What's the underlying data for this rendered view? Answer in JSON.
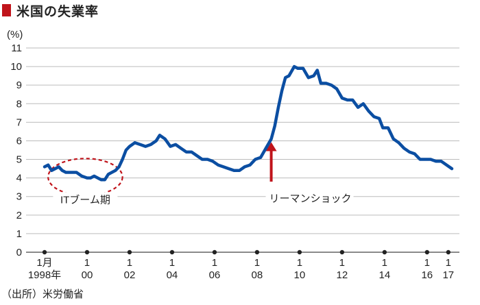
{
  "header": {
    "title": "米国の失業率"
  },
  "source": "（出所）米労働省",
  "chart_data": {
    "type": "line",
    "title": "米国の失業率",
    "ylabel": "(%)",
    "ylim": [
      0,
      11
    ],
    "yticks": [
      0,
      1,
      2,
      3,
      4,
      5,
      6,
      7,
      8,
      9,
      10,
      11
    ],
    "grid": true,
    "x_ticks": [
      {
        "date": "1998-01",
        "top": "1月",
        "bottom": "1998年"
      },
      {
        "date": "2000-01",
        "top": "1",
        "bottom": "00"
      },
      {
        "date": "2002-01",
        "top": "1",
        "bottom": "02"
      },
      {
        "date": "2004-01",
        "top": "1",
        "bottom": "04"
      },
      {
        "date": "2006-01",
        "top": "1",
        "bottom": "06"
      },
      {
        "date": "2008-01",
        "top": "1",
        "bottom": "08"
      },
      {
        "date": "2010-01",
        "top": "1",
        "bottom": "10"
      },
      {
        "date": "2012-01",
        "top": "1",
        "bottom": "12"
      },
      {
        "date": "2014-01",
        "top": "1",
        "bottom": "14"
      },
      {
        "date": "2016-01",
        "top": "1",
        "bottom": "16"
      },
      {
        "date": "2017-01",
        "top": "1",
        "bottom": "17"
      }
    ],
    "series": [
      {
        "color": "#0b4ea2",
        "points": [
          [
            "1998-01",
            4.6
          ],
          [
            "1998-03",
            4.7
          ],
          [
            "1998-05",
            4.4
          ],
          [
            "1998-07",
            4.5
          ],
          [
            "1998-09",
            4.6
          ],
          [
            "1998-11",
            4.4
          ],
          [
            "1999-01",
            4.3
          ],
          [
            "1999-04",
            4.3
          ],
          [
            "1999-07",
            4.3
          ],
          [
            "1999-10",
            4.1
          ],
          [
            "2000-01",
            4.0
          ],
          [
            "2000-03",
            4.0
          ],
          [
            "2000-05",
            4.1
          ],
          [
            "2000-07",
            4.0
          ],
          [
            "2000-09",
            3.9
          ],
          [
            "2000-11",
            3.9
          ],
          [
            "2001-01",
            4.2
          ],
          [
            "2001-03",
            4.3
          ],
          [
            "2001-05",
            4.4
          ],
          [
            "2001-07",
            4.6
          ],
          [
            "2001-09",
            5.0
          ],
          [
            "2001-11",
            5.5
          ],
          [
            "2002-01",
            5.7
          ],
          [
            "2002-04",
            5.9
          ],
          [
            "2002-07",
            5.8
          ],
          [
            "2002-10",
            5.7
          ],
          [
            "2003-01",
            5.8
          ],
          [
            "2003-04",
            6.0
          ],
          [
            "2003-06",
            6.3
          ],
          [
            "2003-09",
            6.1
          ],
          [
            "2003-12",
            5.7
          ],
          [
            "2004-03",
            5.8
          ],
          [
            "2004-06",
            5.6
          ],
          [
            "2004-09",
            5.4
          ],
          [
            "2004-12",
            5.4
          ],
          [
            "2005-03",
            5.2
          ],
          [
            "2005-06",
            5.0
          ],
          [
            "2005-09",
            5.0
          ],
          [
            "2005-12",
            4.9
          ],
          [
            "2006-03",
            4.7
          ],
          [
            "2006-06",
            4.6
          ],
          [
            "2006-09",
            4.5
          ],
          [
            "2006-12",
            4.4
          ],
          [
            "2007-03",
            4.4
          ],
          [
            "2007-06",
            4.6
          ],
          [
            "2007-09",
            4.7
          ],
          [
            "2007-12",
            5.0
          ],
          [
            "2008-03",
            5.1
          ],
          [
            "2008-06",
            5.6
          ],
          [
            "2008-09",
            6.1
          ],
          [
            "2008-11",
            6.8
          ],
          [
            "2009-01",
            7.8
          ],
          [
            "2009-03",
            8.7
          ],
          [
            "2009-05",
            9.4
          ],
          [
            "2009-07",
            9.5
          ],
          [
            "2009-10",
            10.0
          ],
          [
            "2009-12",
            9.9
          ],
          [
            "2010-03",
            9.9
          ],
          [
            "2010-06",
            9.4
          ],
          [
            "2010-09",
            9.5
          ],
          [
            "2010-11",
            9.8
          ],
          [
            "2011-01",
            9.1
          ],
          [
            "2011-04",
            9.1
          ],
          [
            "2011-07",
            9.0
          ],
          [
            "2011-10",
            8.8
          ],
          [
            "2012-01",
            8.3
          ],
          [
            "2012-04",
            8.2
          ],
          [
            "2012-07",
            8.2
          ],
          [
            "2012-10",
            7.8
          ],
          [
            "2013-01",
            8.0
          ],
          [
            "2013-04",
            7.6
          ],
          [
            "2013-07",
            7.3
          ],
          [
            "2013-10",
            7.2
          ],
          [
            "2013-12",
            6.7
          ],
          [
            "2014-03",
            6.7
          ],
          [
            "2014-06",
            6.1
          ],
          [
            "2014-09",
            5.9
          ],
          [
            "2014-12",
            5.6
          ],
          [
            "2015-03",
            5.4
          ],
          [
            "2015-06",
            5.3
          ],
          [
            "2015-09",
            5.0
          ],
          [
            "2015-12",
            5.0
          ],
          [
            "2016-03",
            5.0
          ],
          [
            "2016-06",
            4.9
          ],
          [
            "2016-09",
            4.9
          ],
          [
            "2016-12",
            4.7
          ],
          [
            "2017-03",
            4.5
          ]
        ]
      }
    ],
    "annotations": [
      {
        "type": "ellipse",
        "label": "ITブーム期",
        "from": "1998-03",
        "to": "2001-09",
        "color": "#c0141b"
      },
      {
        "type": "arrow",
        "label": "リーマンショック",
        "date": "2008-09",
        "value": 6.0,
        "color": "#c0141b"
      }
    ]
  }
}
